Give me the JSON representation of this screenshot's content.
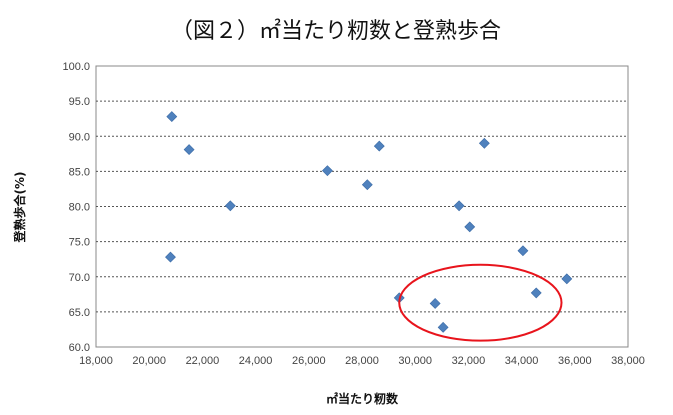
{
  "chart_data": {
    "type": "scatter",
    "title": "（図２）㎡当たり籾数と登熟歩合",
    "xlabel": "㎡当たり籾数",
    "ylabel": "登熟歩合(%)",
    "xlim": [
      18000,
      38000
    ],
    "ylim": [
      60,
      100
    ],
    "xticks": [
      18000,
      20000,
      22000,
      24000,
      26000,
      28000,
      30000,
      32000,
      34000,
      36000,
      38000
    ],
    "yticks": [
      60,
      65,
      70,
      75,
      80,
      85,
      90,
      95,
      100
    ],
    "xtick_labels": [
      "18,000",
      "20,000",
      "22,000",
      "24,000",
      "26,000",
      "28,000",
      "30,000",
      "32,000",
      "34,000",
      "36,000",
      "38,000"
    ],
    "ytick_labels": [
      "60.0",
      "65.0",
      "70.0",
      "75.0",
      "80.0",
      "85.0",
      "90.0",
      "95.0",
      "100.0"
    ],
    "grid": "horizontal dashed",
    "marker_color": "#4f81bd",
    "highlight_color": "#e8141c",
    "points": [
      {
        "x": 20850,
        "y": 92.8
      },
      {
        "x": 21500,
        "y": 88.1
      },
      {
        "x": 20800,
        "y": 72.8
      },
      {
        "x": 23050,
        "y": 80.1
      },
      {
        "x": 26700,
        "y": 85.1
      },
      {
        "x": 28200,
        "y": 83.1
      },
      {
        "x": 28650,
        "y": 88.6
      },
      {
        "x": 31650,
        "y": 80.1
      },
      {
        "x": 32050,
        "y": 77.1
      },
      {
        "x": 32600,
        "y": 89.0
      },
      {
        "x": 34050,
        "y": 73.7
      },
      {
        "x": 34550,
        "y": 67.7
      },
      {
        "x": 35700,
        "y": 69.7
      },
      {
        "x": 29400,
        "y": 67.0
      },
      {
        "x": 30750,
        "y": 66.2
      },
      {
        "x": 31050,
        "y": 62.8
      }
    ],
    "highlight_ellipse": {
      "cx": 32450,
      "cy": 66.3,
      "rx": 3050,
      "ry": 5.4
    }
  }
}
